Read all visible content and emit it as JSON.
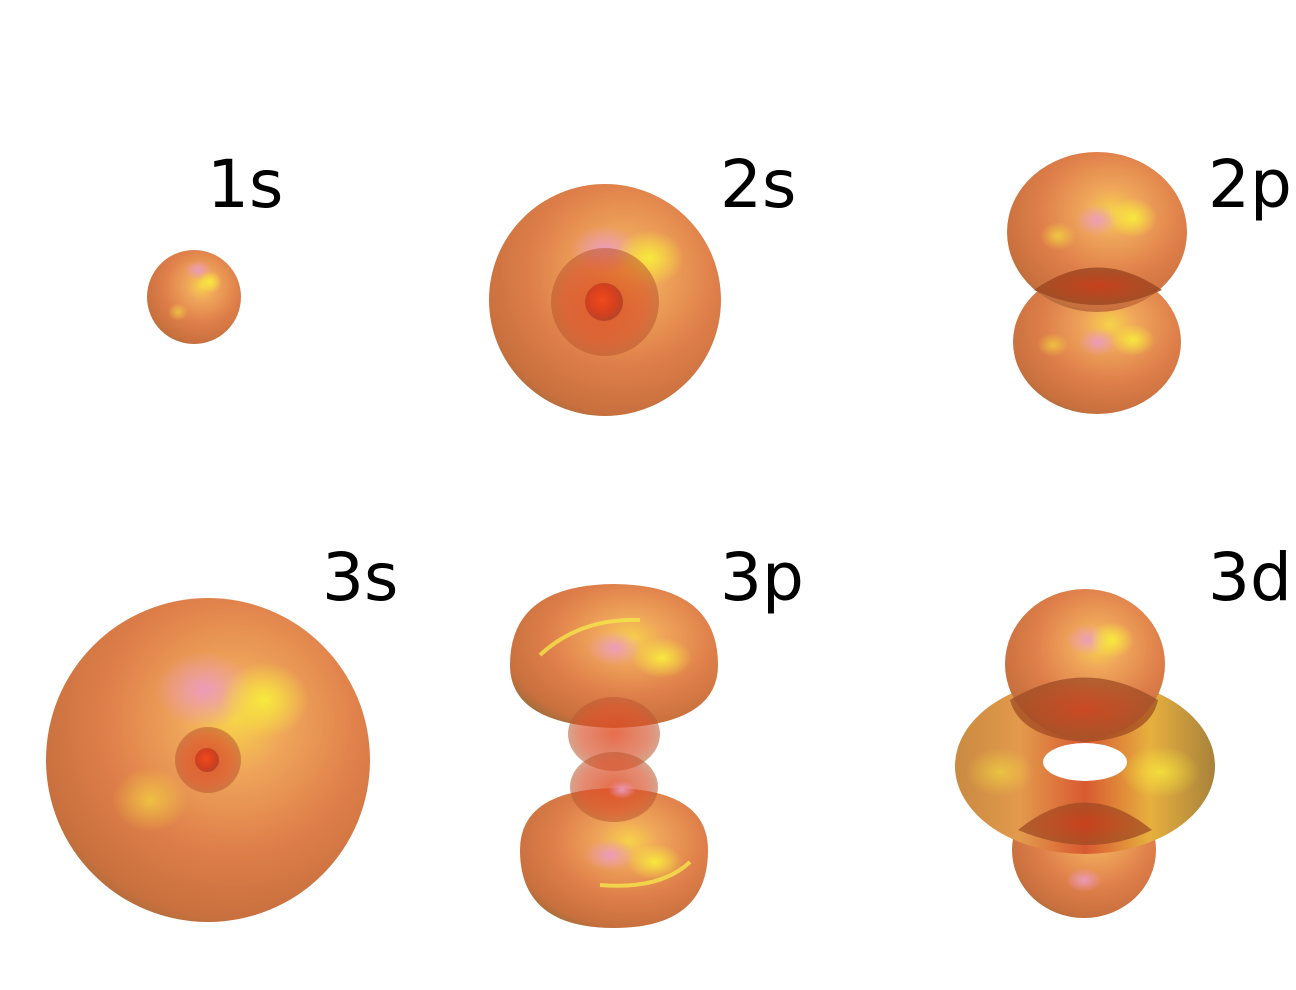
{
  "orbitals": [
    {
      "id": "1s",
      "label": "1s"
    },
    {
      "id": "2s",
      "label": "2s"
    },
    {
      "id": "2p",
      "label": "2p"
    },
    {
      "id": "3s",
      "label": "3s"
    },
    {
      "id": "3p",
      "label": "3p"
    },
    {
      "id": "3d",
      "label": "3d"
    }
  ],
  "colors": {
    "surface_base": "#dd7a45",
    "surface_edge": "#9a5a35",
    "surface_highlight": "#f2e23c",
    "surface_pink": "#e88fb0",
    "inner_core": "#d9321a",
    "overlap": "#b84a1e",
    "label": "#000000",
    "background": "#ffffff"
  }
}
